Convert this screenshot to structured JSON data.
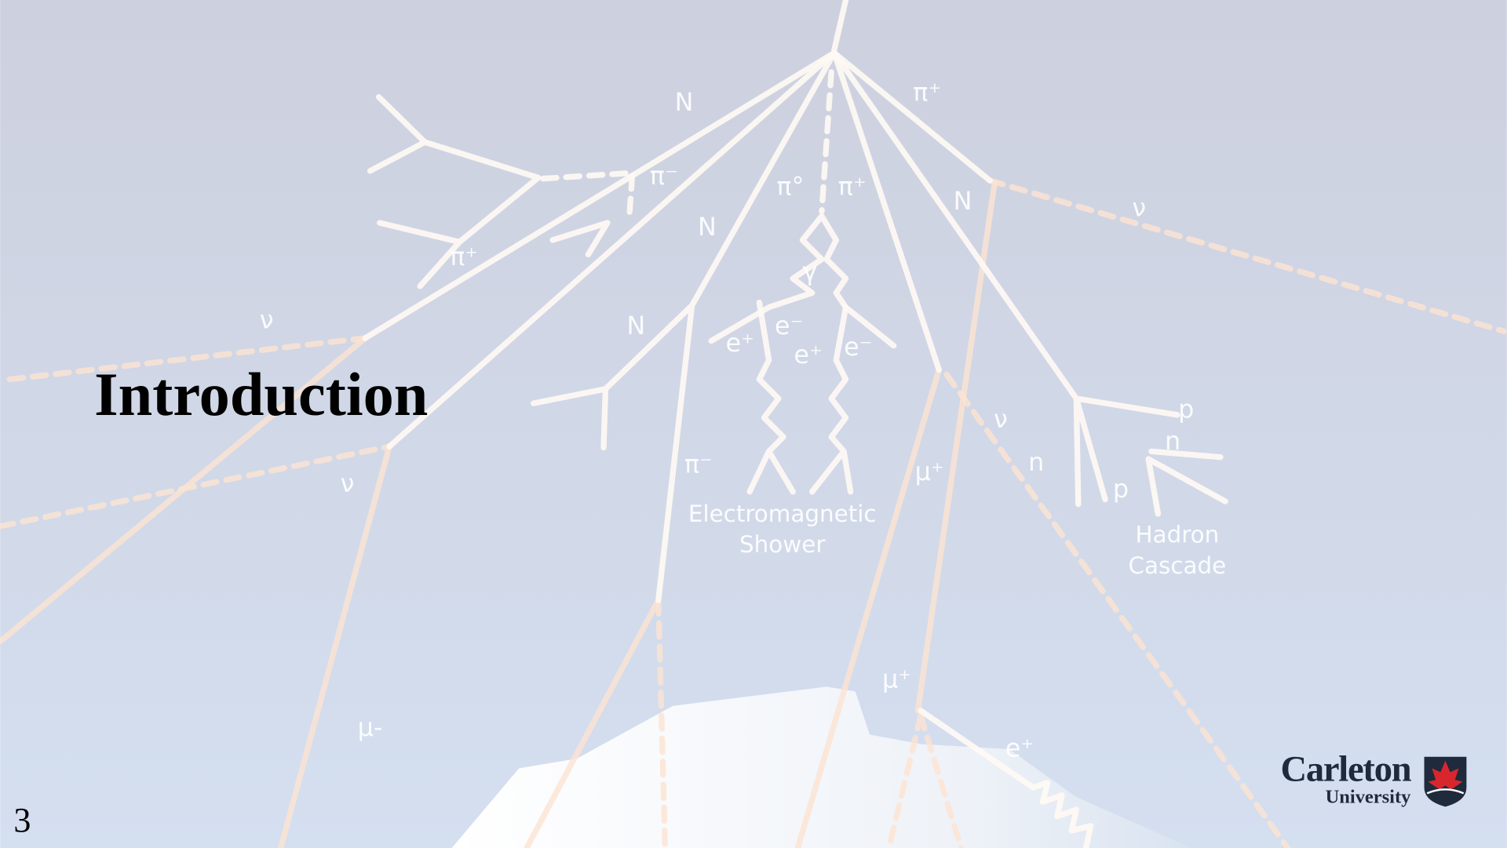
{
  "slide": {
    "title": "Introduction",
    "page_number": "3",
    "logo": {
      "name": "Carleton",
      "subtitle": "University"
    },
    "diagram": {
      "labels": [
        "N",
        "π⁺",
        "π⁻",
        "π⁺",
        "N",
        "π°",
        "π⁺",
        "N",
        "ν",
        "N",
        "γ",
        "e⁺",
        "e⁻",
        "e⁺",
        "e⁻",
        "ν",
        "ν",
        "π⁻",
        "μ⁺",
        "ν",
        "p",
        "n",
        "n",
        "p",
        "μ⁺",
        "μ-",
        "e⁺",
        "Electromagnetic",
        "Shower",
        "Hadron",
        "Cascade"
      ]
    }
  }
}
